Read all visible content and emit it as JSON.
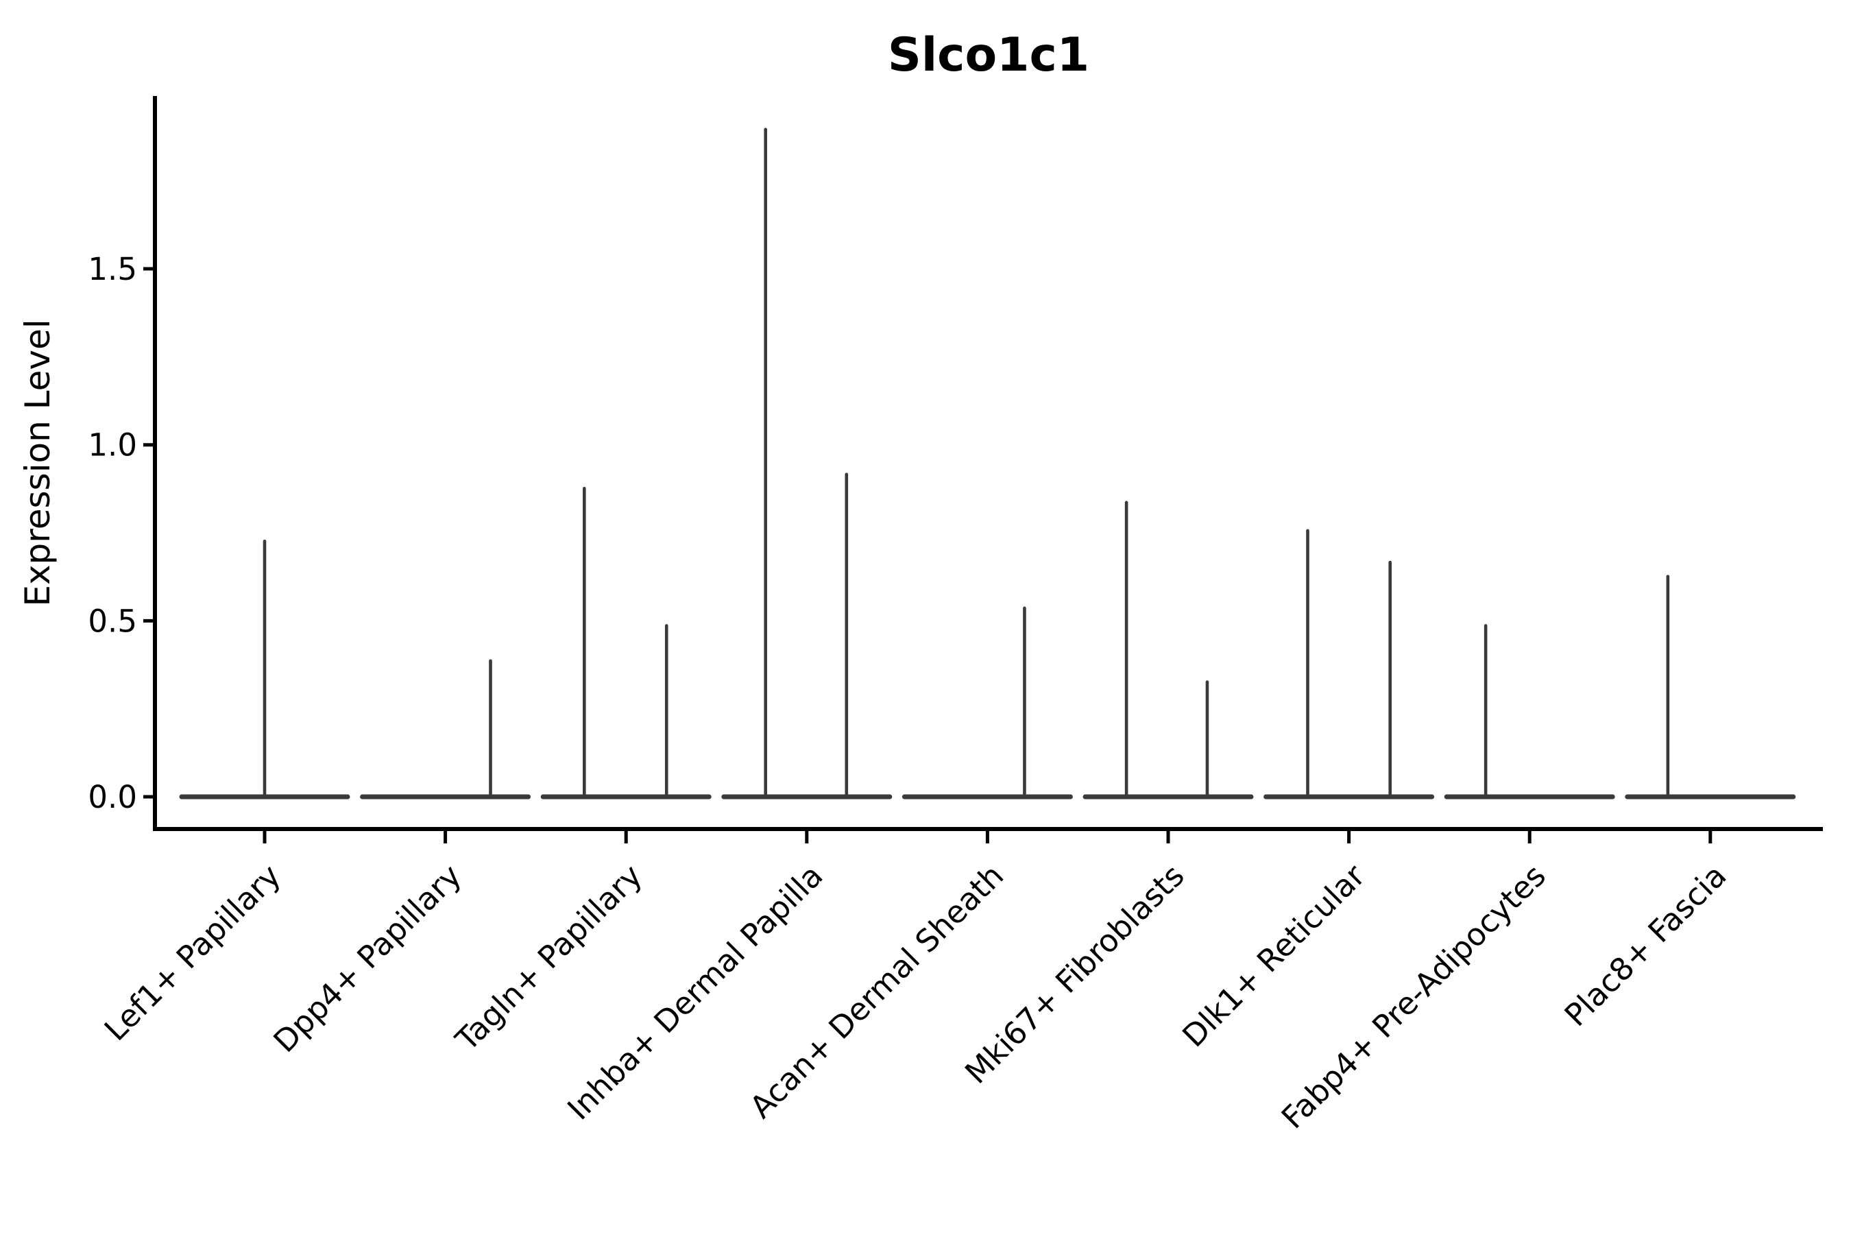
{
  "title": "Slco1c1",
  "chart_data": {
    "type": "violin",
    "title": "Slco1c1",
    "xlabel": "",
    "ylabel": "Expression Level",
    "grid": false,
    "legend": "none",
    "ylim": [
      -0.09,
      1.99
    ],
    "yticks": [
      0.0,
      0.5,
      1.0,
      1.5
    ],
    "ytick_labels": [
      "0.0",
      "0.5",
      "1.0",
      "1.5"
    ],
    "axis_color": "#000000",
    "violin_color": "#3a3a3a",
    "background_color": "#ffffff",
    "categories": [
      "Lef1+ Papillary",
      "Dpp4+ Papillary",
      "Tagln+ Papillary",
      "Inhba+ Dermal Papilla",
      "Acan+ Dermal Sheath",
      "Mki67+ Fibroblasts",
      "Dlk1+ Reticular",
      "Fabp4+ Pre-Adipocytes",
      "Plac8+ Fascia"
    ],
    "violins": [
      {
        "category": "Lef1+ Papillary",
        "baseline_value": 0.0,
        "spikes": [
          {
            "pos": 0.0,
            "value": 0.73
          }
        ]
      },
      {
        "category": "Dpp4+ Papillary",
        "baseline_value": 0.0,
        "spikes": [
          {
            "pos": 0.25,
            "value": 0.39
          }
        ]
      },
      {
        "category": "Tagln+ Papillary",
        "baseline_value": 0.0,
        "spikes": [
          {
            "pos": -0.231,
            "value": 0.88
          },
          {
            "pos": 0.224,
            "value": 0.49
          }
        ]
      },
      {
        "category": "Inhba+ Dermal Papilla",
        "baseline_value": 0.0,
        "spikes": [
          {
            "pos": -0.228,
            "value": 1.9
          },
          {
            "pos": 0.22,
            "value": 0.92
          }
        ]
      },
      {
        "category": "Acan+ Dermal Sheath",
        "baseline_value": 0.0,
        "spikes": [
          {
            "pos": 0.205,
            "value": 0.54
          }
        ]
      },
      {
        "category": "Mki67+ Fibroblasts",
        "baseline_value": 0.0,
        "spikes": [
          {
            "pos": -0.231,
            "value": 0.84
          },
          {
            "pos": 0.216,
            "value": 0.33
          }
        ]
      },
      {
        "category": "Dlk1+ Reticular",
        "baseline_value": 0.0,
        "spikes": [
          {
            "pos": -0.228,
            "value": 0.76
          },
          {
            "pos": 0.228,
            "value": 0.67
          }
        ]
      },
      {
        "category": "Fabp4+ Pre-Adipocytes",
        "baseline_value": 0.0,
        "spikes": [
          {
            "pos": -0.243,
            "value": 0.49
          }
        ]
      },
      {
        "category": "Plac8+ Fascia",
        "baseline_value": 0.0,
        "spikes": [
          {
            "pos": -0.235,
            "value": 0.63
          }
        ]
      }
    ]
  }
}
